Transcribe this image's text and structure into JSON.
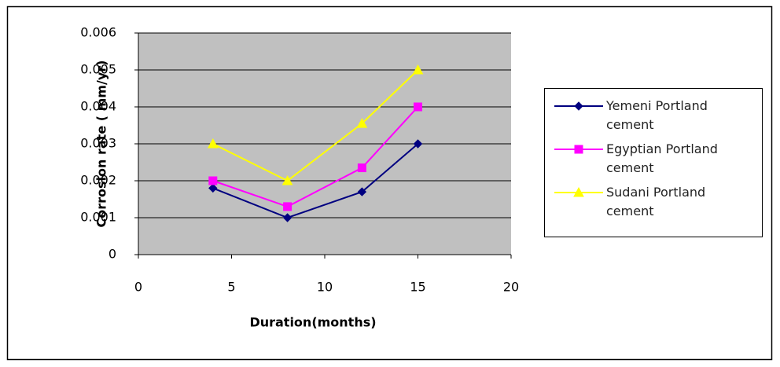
{
  "chart_data": {
    "type": "line",
    "x": [
      4,
      8,
      12,
      15
    ],
    "series": [
      {
        "name": "Yemeni Portland cement",
        "color": "#000080",
        "marker": "diamond",
        "values": [
          0.0018,
          0.001,
          0.0017,
          0.003
        ]
      },
      {
        "name": "Egyptian Portland cement",
        "color": "#ff00ff",
        "marker": "square",
        "values": [
          0.002,
          0.0013,
          0.00235,
          0.004
        ]
      },
      {
        "name": "Sudani Portland cement",
        "color": "#ffff00",
        "marker": "triangle",
        "values": [
          0.003,
          0.002,
          0.00355,
          0.005
        ]
      }
    ],
    "xlabel": "Duration(months)",
    "ylabel": "Corrosion rate ( mm/yr)",
    "xlim": [
      0,
      20
    ],
    "xticks": [
      0,
      5,
      10,
      15,
      20
    ],
    "ylim": [
      0,
      0.006
    ],
    "yticks": [
      0,
      0.001,
      0.002,
      0.003,
      0.004,
      0.005,
      0.006
    ],
    "grid": true,
    "legend": "right",
    "plot_background": "#c0c0c0"
  }
}
